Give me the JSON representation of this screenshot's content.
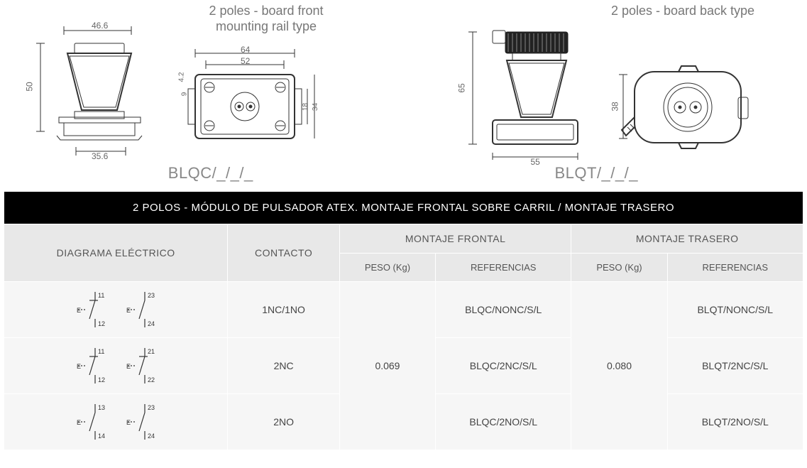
{
  "diagram_left": {
    "title": "2 poles - board front\nmounting rail type",
    "model_code": "BLQC/_/_/_",
    "drawing_a": {
      "dims": {
        "width": "46.6",
        "height": "50",
        "base": "35.6"
      }
    },
    "drawing_b": {
      "dims": {
        "outer_w": "64",
        "inner_w": "52",
        "h1": "4.2",
        "h2": "9",
        "h3": "18",
        "h4": "34"
      }
    }
  },
  "diagram_right": {
    "title": "2 poles - board back type",
    "model_code": "BLQT/_/_/_",
    "drawing_a": {
      "dims": {
        "height": "65",
        "base": "55"
      }
    },
    "drawing_b": {
      "dims": {
        "h": "38"
      }
    }
  },
  "table": {
    "title": "2 POLOS - MÓDULO DE PULSADOR ATEX. MONTAJE FRONTAL SOBRE CARRIL / MONTAJE TRASERO",
    "columns": {
      "diagram": "DIAGRAMA ELÉCTRICO",
      "contact": "CONTACTO",
      "front": "MONTAJE FRONTAL",
      "back": "MONTAJE TRASERO",
      "weight": "PESO (Kg)",
      "ref": "REFERENCIAS"
    },
    "weights": {
      "front": "0.069",
      "back": "0.080"
    },
    "rows": [
      {
        "circuits": [
          {
            "type": "nc",
            "top": "11",
            "bottom": "12",
            "label": "E"
          },
          {
            "type": "no",
            "top": "23",
            "bottom": "24",
            "label": "E"
          }
        ],
        "contact": "1NC/1NO",
        "ref_front": "BLQC/NONC/S/L",
        "ref_back": "BLQT/NONC/S/L"
      },
      {
        "circuits": [
          {
            "type": "nc",
            "top": "11",
            "bottom": "12",
            "label": "E"
          },
          {
            "type": "nc",
            "top": "21",
            "bottom": "22",
            "label": "E"
          }
        ],
        "contact": "2NC",
        "ref_front": "BLQC/2NC/S/L",
        "ref_back": "BLQT/2NC/S/L"
      },
      {
        "circuits": [
          {
            "type": "no",
            "top": "13",
            "bottom": "14",
            "label": "E"
          },
          {
            "type": "no",
            "top": "23",
            "bottom": "24",
            "label": "E"
          }
        ],
        "contact": "2NO",
        "ref_front": "BLQC/2NO/S/L",
        "ref_back": "BLQT/2NO/S/L"
      }
    ]
  },
  "style": {
    "bg": "#ffffff",
    "title_bg": "#000000",
    "header_bg": "#e8e8e8",
    "cell_bg": "#f6f6f6",
    "text_muted": "#777777",
    "text_body": "#444444"
  }
}
